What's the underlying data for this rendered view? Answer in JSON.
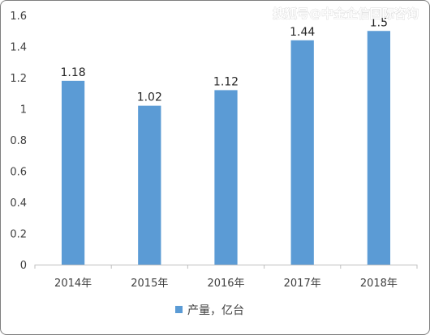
{
  "chart_data": {
    "type": "bar",
    "categories": [
      "2014年",
      "2015年",
      "2016年",
      "2017年",
      "2018年"
    ],
    "series": [
      {
        "name": "产量，亿台",
        "values": [
          1.18,
          1.02,
          1.12,
          1.44,
          1.5
        ],
        "labels": [
          "1.18",
          "1.02",
          "1.12",
          "1.44",
          "1.5"
        ],
        "color": "#5b9bd5"
      }
    ],
    "yticks": [
      "0",
      "0.2",
      "0.4",
      "0.6",
      "0.8",
      "1",
      "1.2",
      "1.4",
      "1.6"
    ],
    "ylim": [
      0,
      1.6
    ],
    "grid": false,
    "legend": "bottom"
  },
  "watermark": "搜狐号@中金企信国际咨询"
}
